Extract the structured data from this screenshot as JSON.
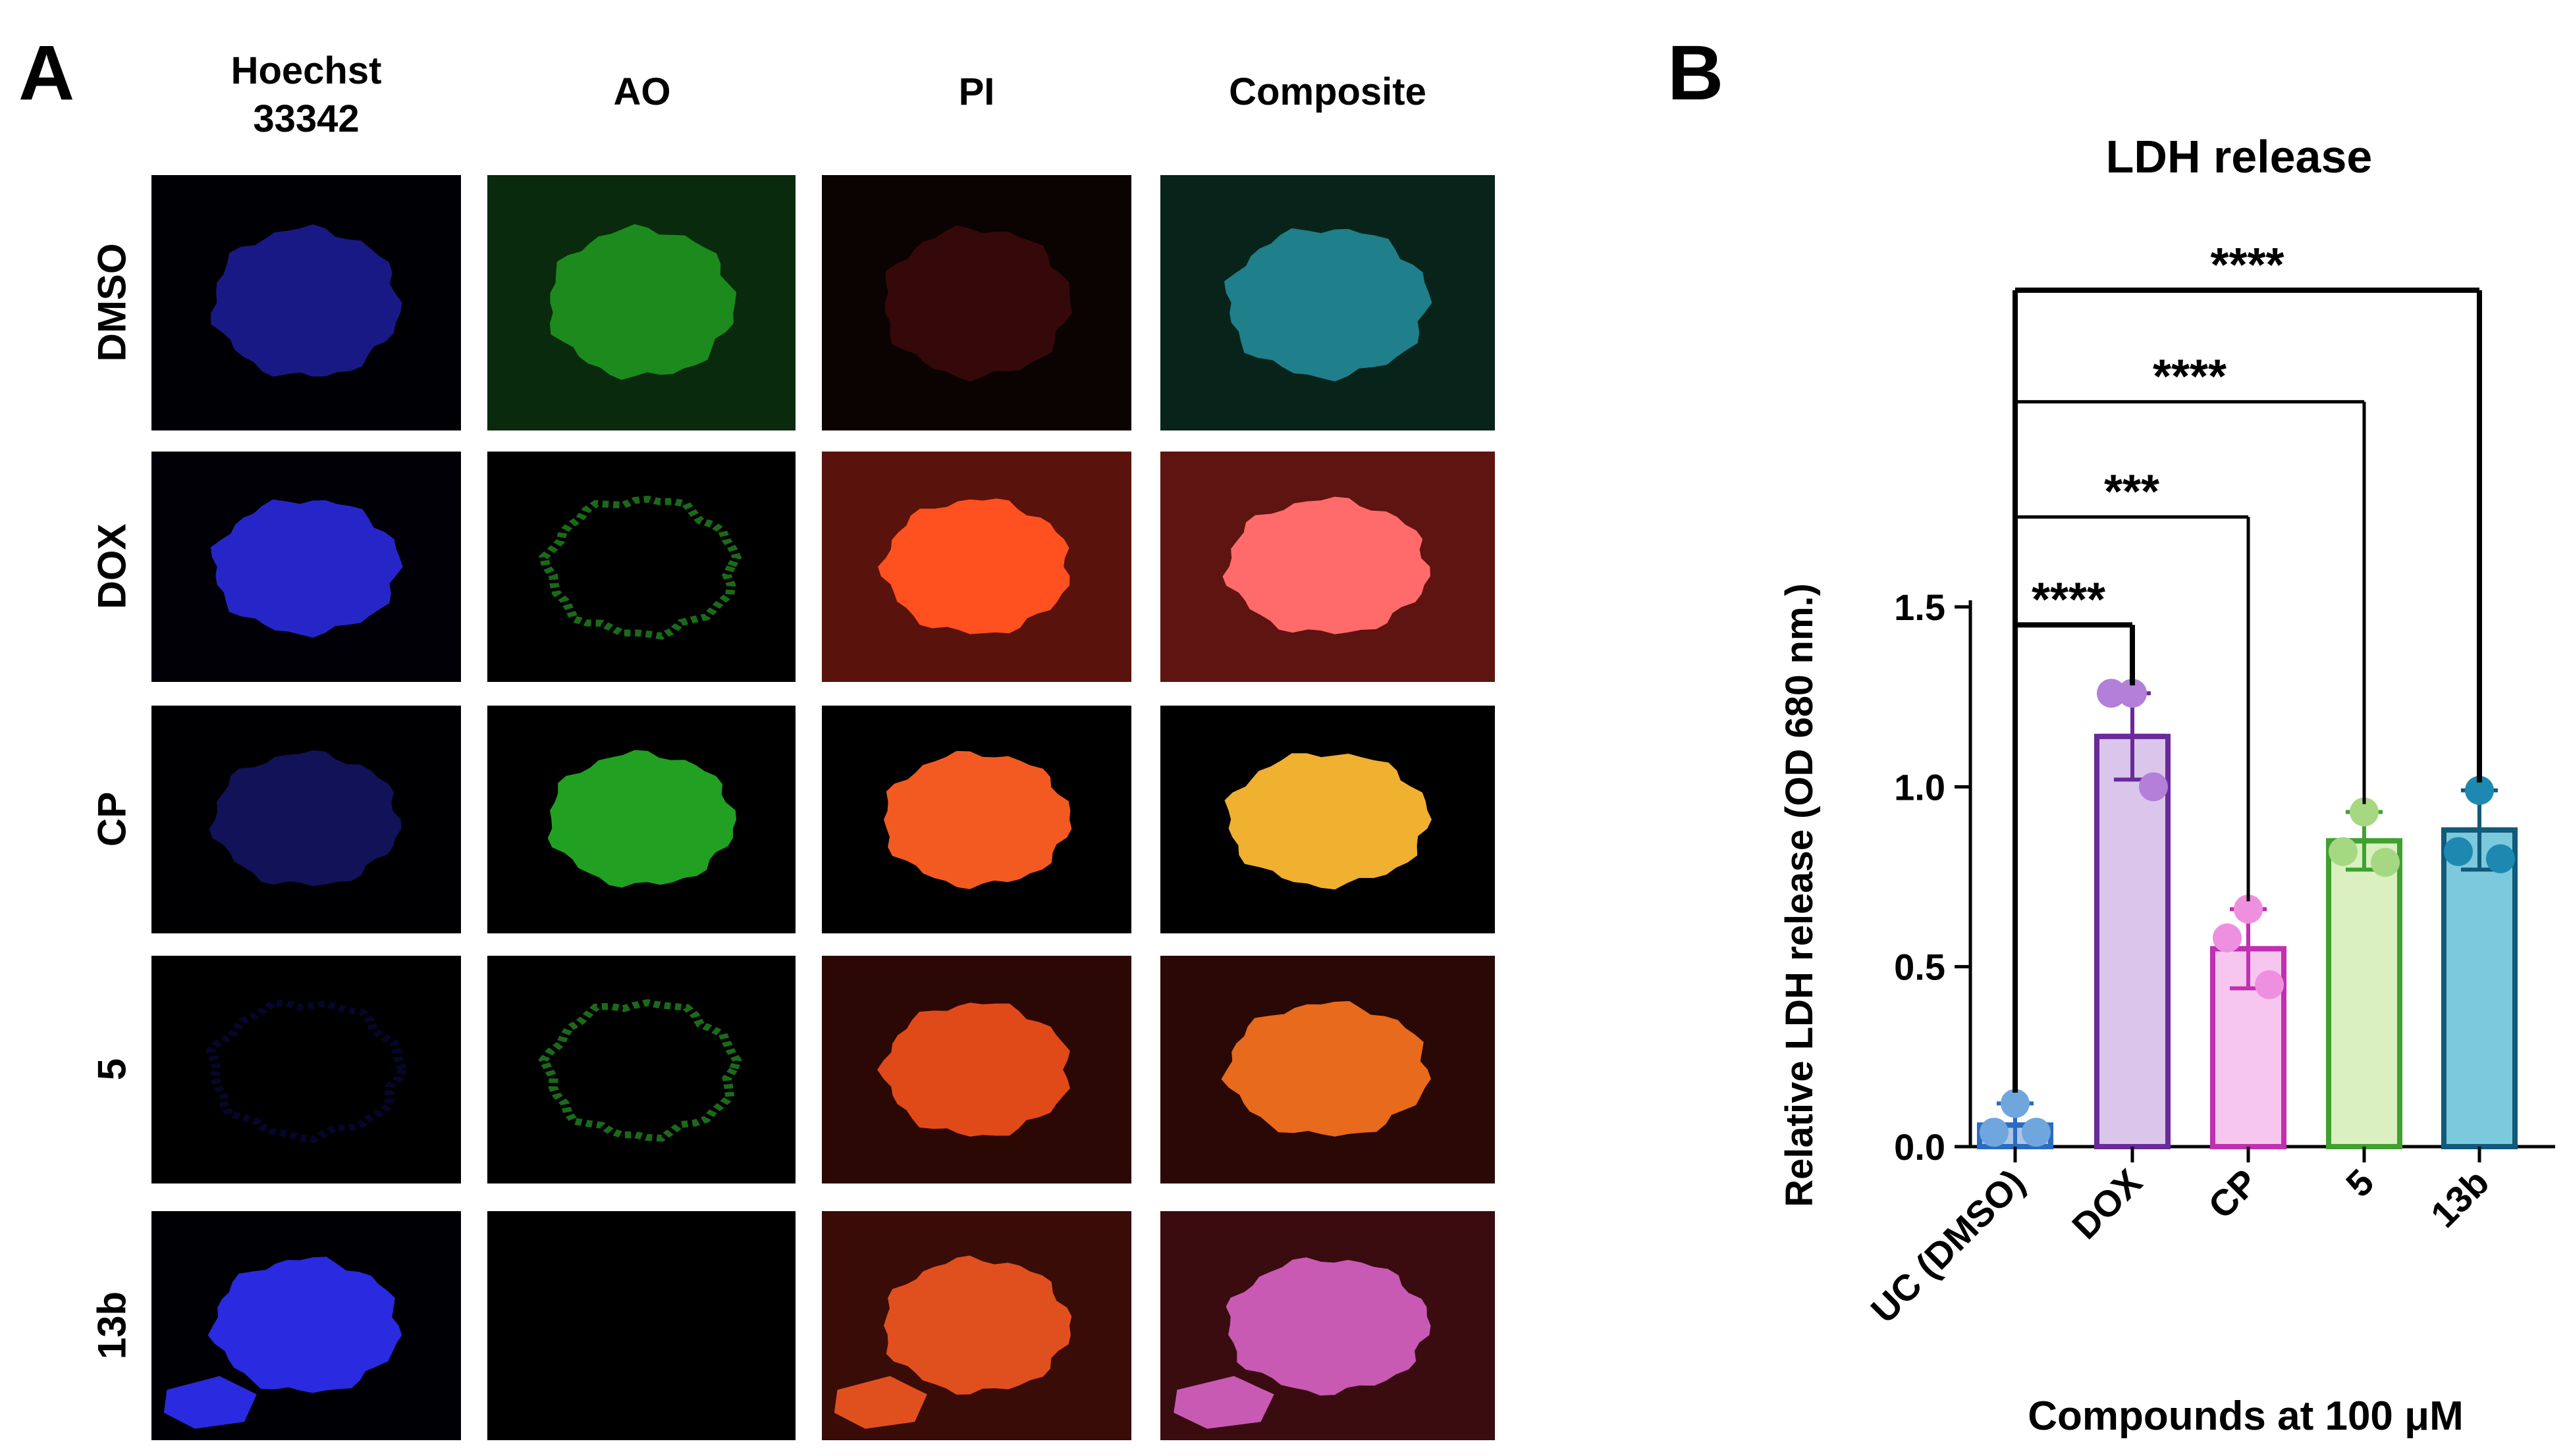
{
  "panel_a": {
    "letter": "A",
    "columns": [
      {
        "label": "Hoechst\n33342",
        "color": "blue"
      },
      {
        "label": "AO",
        "color": "green"
      },
      {
        "label": "PI",
        "color": "red"
      },
      {
        "label": "Composite",
        "color": "composite"
      }
    ],
    "rows": [
      {
        "label": "DMSO",
        "bg": [
          "#000004",
          "#0a2a0e",
          "#0b0202",
          "#08241a"
        ],
        "fill": [
          "#1a1a8c",
          "#1c8a1c",
          "#3a0a0a",
          "#1f7f8a"
        ],
        "opacity": [
          0.95,
          1,
          0.9,
          1
        ],
        "ring": [
          false,
          false,
          false,
          false
        ],
        "blob": false
      },
      {
        "label": "DOX",
        "bg": [
          "#000006",
          "#000000",
          "#5a120c",
          "#5e1410"
        ],
        "fill": [
          "#2626c8",
          "#1a6a1a",
          "#ff5020",
          "#ff6a6a"
        ],
        "opacity": [
          1,
          1,
          1,
          1
        ],
        "ring": [
          false,
          true,
          false,
          false
        ],
        "blob": false
      },
      {
        "label": "CP",
        "bg": [
          "#000003",
          "#000000",
          "#000000",
          "#000000"
        ],
        "fill": [
          "#2020a0",
          "#22a022",
          "#f25a22",
          "#f0b030"
        ],
        "opacity": [
          0.55,
          1,
          1,
          1
        ],
        "ring": [
          false,
          false,
          false,
          false
        ],
        "blob": false
      },
      {
        "label": "5",
        "bg": [
          "#000000",
          "#000000",
          "#2c0805",
          "#2a0805"
        ],
        "fill": [
          "#10106a",
          "#1a6a1a",
          "#e04a18",
          "#e86a1c"
        ],
        "opacity": [
          0.4,
          1,
          1,
          1
        ],
        "ring": [
          true,
          true,
          false,
          false
        ],
        "blob": false
      },
      {
        "label": "13b",
        "bg": [
          "#000004",
          "#000000",
          "#3a0c08",
          "#3a0c10"
        ],
        "fill": [
          "#2a2ae0",
          "#000000",
          "#e0501e",
          "#c85ab4"
        ],
        "opacity": [
          1,
          0,
          1,
          1
        ],
        "ring": [
          false,
          false,
          false,
          false
        ],
        "blob": true
      }
    ]
  },
  "panel_b": {
    "letter": "B",
    "chart_data": {
      "type": "bar",
      "title": "LDH release",
      "xlabel": "Compounds at 100 μM",
      "ylabel": "Relative LDH release (OD 680 nm.)",
      "ylim": [
        0,
        1.5
      ],
      "yticks": [
        0.0,
        0.5,
        1.0,
        1.5
      ],
      "ytick_labels": [
        "0.0",
        "0.5",
        "1.0",
        "1.5"
      ],
      "categories": [
        "UC (DMSO)",
        "DOX",
        "CP",
        "5",
        "13b"
      ],
      "values": [
        0.06,
        1.14,
        0.55,
        0.85,
        0.88
      ],
      "errors": [
        0.06,
        0.12,
        0.11,
        0.08,
        0.11
      ],
      "points": [
        [
          0.12,
          0.04,
          0.04
        ],
        [
          1.26,
          1.26,
          1.0
        ],
        [
          0.66,
          0.58,
          0.45
        ],
        [
          0.93,
          0.82,
          0.79
        ],
        [
          0.99,
          0.82,
          0.8
        ]
      ],
      "bar_fill": [
        "#a9c6e6",
        "#d9c6ea",
        "#f7c6ef",
        "#daf0c0",
        "#7cc8dc"
      ],
      "bar_stroke": [
        "#2a6cc0",
        "#6a2a9a",
        "#c030b0",
        "#40a030",
        "#105a7a"
      ],
      "point_color": [
        "#6fa6de",
        "#b37fd9",
        "#ef8fe0",
        "#a6d882",
        "#1e88b0"
      ],
      "comparisons": [
        {
          "from": 0,
          "to": 1,
          "label": "****",
          "y": 1.45
        },
        {
          "from": 0,
          "to": 2,
          "label": "***",
          "y": 1.75
        },
        {
          "from": 0,
          "to": 3,
          "label": "****",
          "y": 2.07
        },
        {
          "from": 0,
          "to": 4,
          "label": "****",
          "y": 2.38
        }
      ]
    }
  }
}
